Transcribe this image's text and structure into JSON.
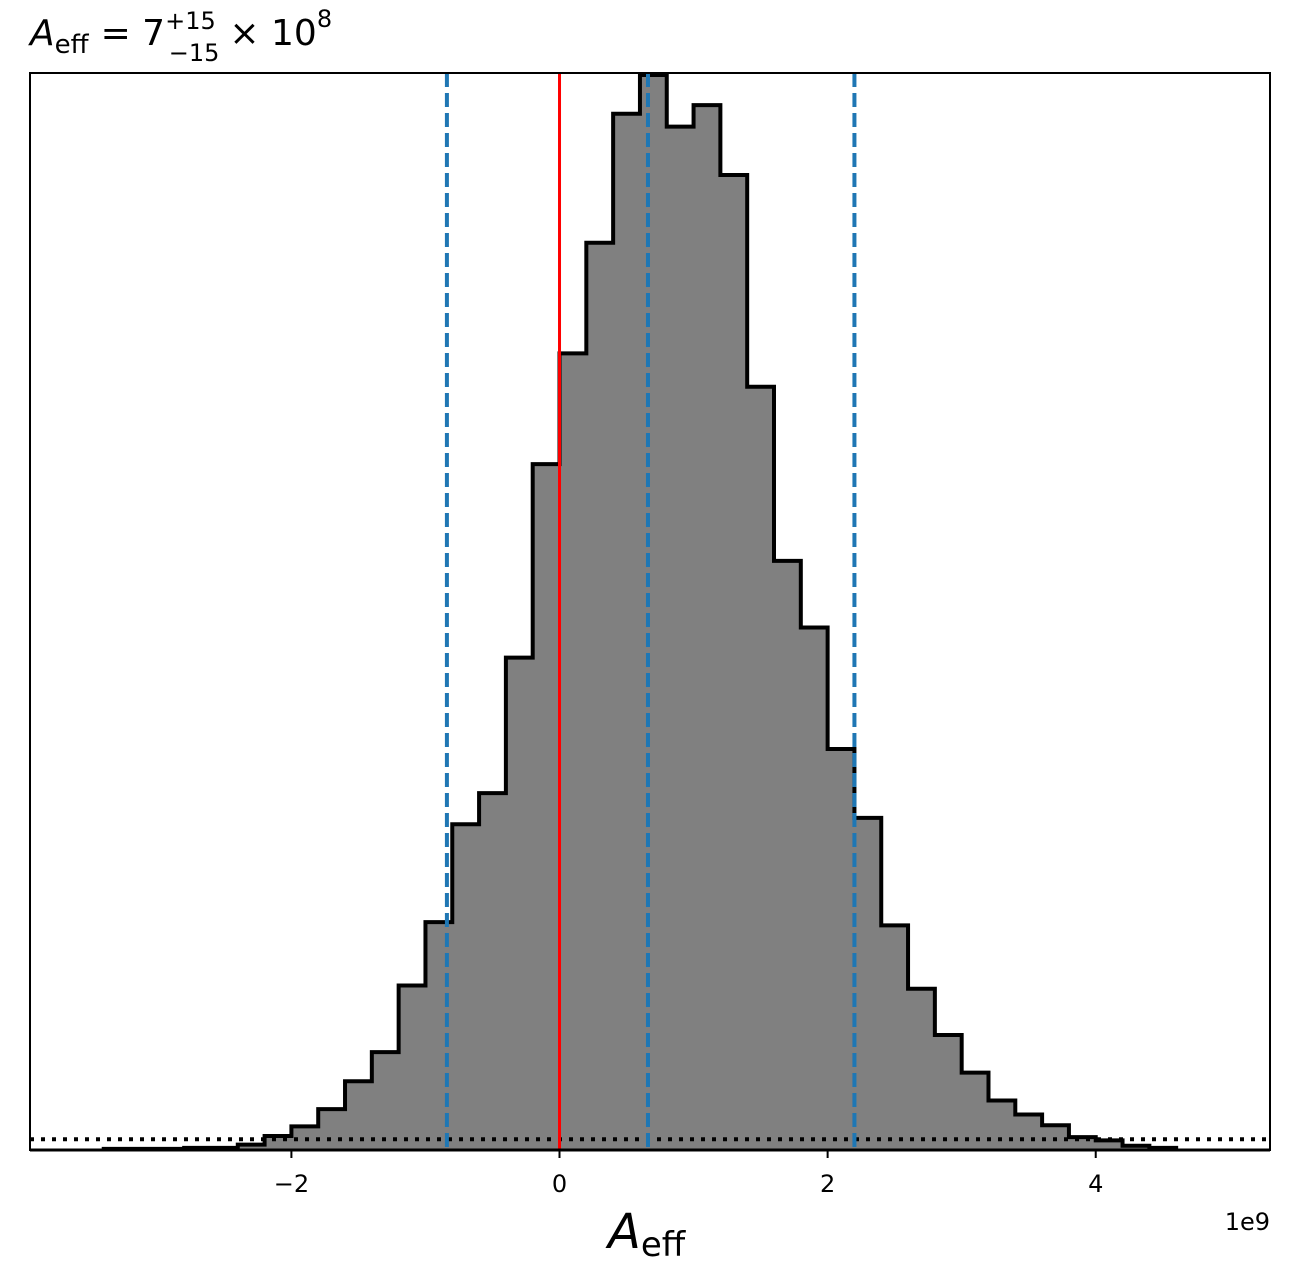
{
  "chart_data": {
    "type": "bar",
    "title": {
      "symbol": "A",
      "subscript": "eff",
      "equals": "= 7",
      "sup": "+15",
      "sub": "−15",
      "times": "× 10",
      "exp": "8"
    },
    "xlabel": {
      "symbol": "A",
      "subscript": "eff"
    },
    "offset_label": "1e9",
    "xlim": [
      -3.95,
      5.3
    ],
    "ylim": [
      0,
      1
    ],
    "xticks": [
      {
        "value": -2,
        "label": "−2"
      },
      {
        "value": 0,
        "label": "0"
      },
      {
        "value": 2,
        "label": "2"
      },
      {
        "value": 4,
        "label": "4"
      }
    ],
    "bin_edges": [
      -3.4,
      -3.2,
      -3.0,
      -2.8,
      -2.6,
      -2.4,
      -2.2,
      -2.0,
      -1.8,
      -1.6,
      -1.4,
      -1.2,
      -1.0,
      -0.8,
      -0.6,
      -0.4,
      -0.2,
      0.0,
      0.2,
      0.4,
      0.6,
      0.8,
      1.0,
      1.2,
      1.4,
      1.6,
      1.8,
      2.0,
      2.2,
      2.4,
      2.6,
      2.8,
      3.0,
      3.2,
      3.4,
      3.6,
      3.8,
      4.0,
      4.2,
      4.4,
      4.6
    ],
    "bin_values": [
      0.001,
      0.001,
      0.001,
      0.002,
      0.002,
      0.005,
      0.013,
      0.022,
      0.038,
      0.064,
      0.091,
      0.153,
      0.212,
      0.303,
      0.332,
      0.458,
      0.638,
      0.741,
      0.844,
      0.964,
      1.0,
      0.952,
      0.972,
      0.907,
      0.71,
      0.548,
      0.486,
      0.373,
      0.309,
      0.209,
      0.15,
      0.107,
      0.072,
      0.046,
      0.033,
      0.023,
      0.012,
      0.009,
      0.004,
      0.002
    ],
    "fill_color": "#808080",
    "edge_color": "#000000",
    "reference_line": {
      "x": 0,
      "color": "#ff0000"
    },
    "quantile_lines": {
      "values": [
        -0.84,
        0.66,
        2.2
      ],
      "color": "#1f77b4",
      "style": "dashed"
    },
    "baseline": {
      "y": 0.01,
      "style": "dotted",
      "color": "#000000"
    }
  }
}
